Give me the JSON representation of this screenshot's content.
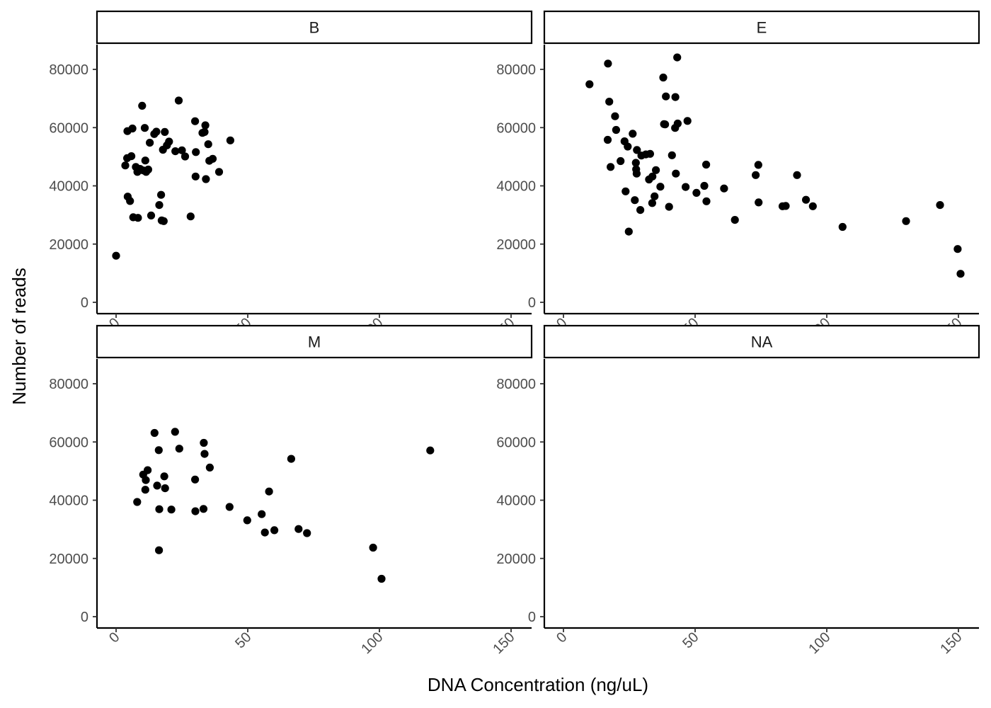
{
  "chart_data": {
    "type": "scatter",
    "layout": "facet_wrap 2x2",
    "xlabel": "DNA Concentration (ng/uL)",
    "ylabel": "Number of reads",
    "xlim": [
      -4,
      162
    ],
    "ylim": [
      -3000,
      88000
    ],
    "x_ticks": [
      0,
      50,
      100,
      150
    ],
    "y_ticks": [
      0,
      20000,
      40000,
      60000,
      80000
    ],
    "grid": false,
    "point_color": "#000000",
    "strip_fill": "#ffffff",
    "panels": [
      {
        "label": "B",
        "points": [
          [
            0,
            16000
          ],
          [
            3.5,
            47000
          ],
          [
            4.2,
            49500
          ],
          [
            4.3,
            58800
          ],
          [
            4.4,
            36300
          ],
          [
            5.3,
            34800
          ],
          [
            6.2,
            59700
          ],
          [
            5.8,
            50200
          ],
          [
            6.5,
            29200
          ],
          [
            7.5,
            46500
          ],
          [
            8.1,
            44800
          ],
          [
            8.3,
            29000
          ],
          [
            9.1,
            45800
          ],
          [
            9.9,
            67500
          ],
          [
            10.3,
            45300
          ],
          [
            10.9,
            59900
          ],
          [
            11.1,
            48700
          ],
          [
            11.4,
            44800
          ],
          [
            12.2,
            45600
          ],
          [
            12.8,
            54800
          ],
          [
            13.3,
            29800
          ],
          [
            14.5,
            57800
          ],
          [
            15.3,
            58600
          ],
          [
            16.4,
            33400
          ],
          [
            17.1,
            36900
          ],
          [
            17.3,
            28100
          ],
          [
            17.8,
            52400
          ],
          [
            18.1,
            27900
          ],
          [
            18.5,
            58500
          ],
          [
            19.3,
            53900
          ],
          [
            20.1,
            55200
          ],
          [
            22.5,
            51900
          ],
          [
            23.8,
            69300
          ],
          [
            25.0,
            52200
          ],
          [
            26.2,
            50100
          ],
          [
            28.3,
            29500
          ],
          [
            30.0,
            62200
          ],
          [
            30.2,
            43200
          ],
          [
            30.3,
            51600
          ],
          [
            32.8,
            58200
          ],
          [
            33.6,
            58500
          ],
          [
            33.9,
            60800
          ],
          [
            34.1,
            42300
          ],
          [
            35.0,
            54300
          ],
          [
            35.4,
            48600
          ],
          [
            36.7,
            49300
          ],
          [
            39.1,
            44800
          ],
          [
            43.4,
            55600
          ]
        ]
      },
      {
        "label": "E",
        "points": [
          [
            9.9,
            74900
          ],
          [
            16.9,
            82000
          ],
          [
            16.8,
            55800
          ],
          [
            17.4,
            68900
          ],
          [
            17.9,
            46500
          ],
          [
            19.6,
            63900
          ],
          [
            20.0,
            59200
          ],
          [
            21.7,
            48500
          ],
          [
            23.2,
            55300
          ],
          [
            23.6,
            38100
          ],
          [
            24.4,
            53500
          ],
          [
            24.8,
            24300
          ],
          [
            26.3,
            57900
          ],
          [
            27.1,
            35100
          ],
          [
            27.5,
            47900
          ],
          [
            27.6,
            45700
          ],
          [
            27.8,
            44200
          ],
          [
            27.9,
            52300
          ],
          [
            29.2,
            31700
          ],
          [
            29.6,
            50400
          ],
          [
            31.3,
            50800
          ],
          [
            32.5,
            42200
          ],
          [
            32.9,
            51000
          ],
          [
            33.7,
            34100
          ],
          [
            33.8,
            43200
          ],
          [
            34.6,
            36400
          ],
          [
            35.1,
            45400
          ],
          [
            36.8,
            39700
          ],
          [
            37.9,
            77200
          ],
          [
            38.2,
            61200
          ],
          [
            38.6,
            61100
          ],
          [
            38.9,
            70700
          ],
          [
            40.1,
            32800
          ],
          [
            41.2,
            50500
          ],
          [
            42.4,
            59900
          ],
          [
            42.5,
            70500
          ],
          [
            42.7,
            44200
          ],
          [
            43.2,
            84100
          ],
          [
            43.4,
            61400
          ],
          [
            46.4,
            39600
          ],
          [
            47.1,
            62300
          ],
          [
            50.5,
            37600
          ],
          [
            53.5,
            40000
          ],
          [
            54.3,
            34700
          ],
          [
            54.2,
            47300
          ],
          [
            61.0,
            39100
          ],
          [
            65.1,
            28300
          ],
          [
            73.0,
            43700
          ],
          [
            74.0,
            47200
          ],
          [
            74.1,
            34300
          ],
          [
            83.2,
            33000
          ],
          [
            84.4,
            33100
          ],
          [
            88.7,
            43700
          ],
          [
            92.1,
            35200
          ],
          [
            94.7,
            33000
          ],
          [
            106.0,
            25900
          ],
          [
            130.1,
            27900
          ],
          [
            143.0,
            33400
          ],
          [
            149.7,
            18300
          ],
          [
            150.8,
            9800
          ]
        ]
      },
      {
        "label": "M",
        "points": [
          [
            8.0,
            39400
          ],
          [
            10.3,
            48800
          ],
          [
            11.1,
            43600
          ],
          [
            11.3,
            46900
          ],
          [
            12.0,
            50300
          ],
          [
            14.6,
            63100
          ],
          [
            15.6,
            45000
          ],
          [
            16.2,
            57200
          ],
          [
            16.3,
            22800
          ],
          [
            16.4,
            36900
          ],
          [
            18.3,
            48200
          ],
          [
            18.6,
            44100
          ],
          [
            21.0,
            36800
          ],
          [
            22.4,
            63500
          ],
          [
            24.0,
            57700
          ],
          [
            30.0,
            47100
          ],
          [
            30.1,
            36200
          ],
          [
            33.3,
            59700
          ],
          [
            33.6,
            55900
          ],
          [
            33.2,
            37000
          ],
          [
            35.6,
            51200
          ],
          [
            43.1,
            37700
          ],
          [
            49.8,
            33100
          ],
          [
            55.3,
            35200
          ],
          [
            56.5,
            28900
          ],
          [
            58.1,
            43000
          ],
          [
            60.1,
            29700
          ],
          [
            66.5,
            54200
          ],
          [
            69.3,
            30100
          ],
          [
            72.5,
            28700
          ],
          [
            97.6,
            23700
          ],
          [
            100.8,
            13000
          ],
          [
            119.3,
            57100
          ]
        ]
      },
      {
        "label": "NA",
        "points": []
      }
    ]
  }
}
